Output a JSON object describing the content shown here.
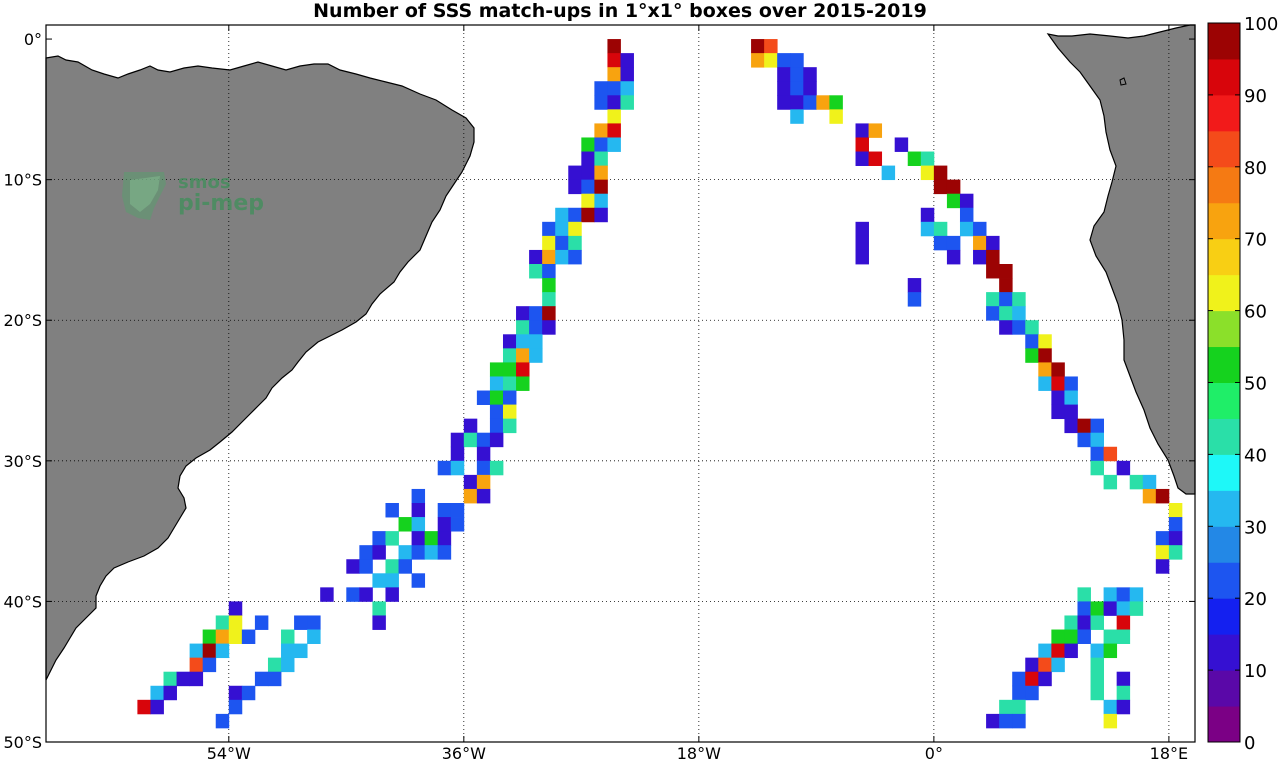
{
  "chart_data": {
    "type": "heatmap",
    "title": "Number of SSS match-ups in 1°x1° boxes over 2015-2019",
    "x_ticks": [
      "54°W",
      "36°W",
      "18°W",
      "0°",
      "18°E"
    ],
    "x_tick_values": [
      -54,
      -36,
      -18,
      0,
      18
    ],
    "y_ticks": [
      "0°",
      "10°S",
      "20°S",
      "30°S",
      "40°S",
      "50°S"
    ],
    "y_tick_values": [
      0,
      -10,
      -20,
      -30,
      -40,
      -50
    ],
    "xlim": [
      -68,
      20
    ],
    "ylim": [
      -50,
      1
    ],
    "grid": true,
    "colorbar": {
      "ticks": [
        "0",
        "10",
        "20",
        "30",
        "40",
        "50",
        "60",
        "70",
        "80",
        "90",
        "100"
      ],
      "range": [
        0,
        100
      ],
      "colors": [
        "#7b0085",
        "#5a08a8",
        "#3510d2",
        "#1420f0",
        "#1d55f0",
        "#2388e6",
        "#25b8f0",
        "#1ef8f8",
        "#2adfa8",
        "#1fee68",
        "#15d21e",
        "#8be02a",
        "#f0f21b",
        "#f8cf14",
        "#f8a30f",
        "#f57a13",
        "#f44b1a",
        "#f21a1a",
        "#d8050b",
        "#9c0303"
      ]
    },
    "cells": [
      [
        -25,
        0,
        100
      ],
      [
        -25,
        -1,
        90
      ],
      [
        -24,
        -1,
        10
      ],
      [
        -25,
        -2,
        70
      ],
      [
        -24,
        -2,
        10
      ],
      [
        -26,
        -3,
        20
      ],
      [
        -25,
        -3,
        20
      ],
      [
        -24,
        -3,
        30
      ],
      [
        -26,
        -4,
        20
      ],
      [
        -25,
        -4,
        10
      ],
      [
        -24,
        -4,
        40
      ],
      [
        -25,
        -5,
        60
      ],
      [
        -26,
        -6,
        70
      ],
      [
        -25,
        -6,
        90
      ],
      [
        -27,
        -7,
        50
      ],
      [
        -26,
        -7,
        20
      ],
      [
        -25,
        -7,
        30
      ],
      [
        -27,
        -8,
        10
      ],
      [
        -26,
        -8,
        40
      ],
      [
        -28,
        -9,
        10
      ],
      [
        -27,
        -9,
        10
      ],
      [
        -26,
        -9,
        70
      ],
      [
        -28,
        -10,
        10
      ],
      [
        -27,
        -10,
        20
      ],
      [
        -26,
        -10,
        100
      ],
      [
        -27,
        -11,
        60
      ],
      [
        -26,
        -11,
        30
      ],
      [
        -29,
        -12,
        30
      ],
      [
        -28,
        -12,
        20
      ],
      [
        -27,
        -12,
        100
      ],
      [
        -26,
        -12,
        10
      ],
      [
        -30,
        -13,
        20
      ],
      [
        -29,
        -13,
        30
      ],
      [
        -28,
        -13,
        60
      ],
      [
        -30,
        -14,
        60
      ],
      [
        -29,
        -14,
        20
      ],
      [
        -28,
        -14,
        40
      ],
      [
        -31,
        -15,
        10
      ],
      [
        -30,
        -15,
        70
      ],
      [
        -29,
        -15,
        30
      ],
      [
        -28,
        -15,
        20
      ],
      [
        -31,
        -16,
        40
      ],
      [
        -30,
        -16,
        20
      ],
      [
        -30,
        -17,
        50
      ],
      [
        -30,
        -18,
        40
      ],
      [
        -32,
        -19,
        10
      ],
      [
        -31,
        -19,
        20
      ],
      [
        -30,
        -19,
        100
      ],
      [
        -32,
        -20,
        40
      ],
      [
        -31,
        -20,
        20
      ],
      [
        -30,
        -20,
        10
      ],
      [
        -33,
        -21,
        10
      ],
      [
        -32,
        -21,
        30
      ],
      [
        -31,
        -21,
        30
      ],
      [
        -33,
        -22,
        40
      ],
      [
        -32,
        -22,
        70
      ],
      [
        -31,
        -22,
        30
      ],
      [
        -34,
        -23,
        50
      ],
      [
        -33,
        -23,
        50
      ],
      [
        -32,
        -23,
        90
      ],
      [
        -34,
        -24,
        30
      ],
      [
        -33,
        -24,
        40
      ],
      [
        -32,
        -24,
        50
      ],
      [
        -35,
        -25,
        20
      ],
      [
        -34,
        -25,
        50
      ],
      [
        -33,
        -25,
        20
      ],
      [
        -34,
        -26,
        20
      ],
      [
        -33,
        -26,
        60
      ],
      [
        -36,
        -27,
        10
      ],
      [
        -34,
        -27,
        20
      ],
      [
        -33,
        -27,
        40
      ],
      [
        -37,
        -28,
        10
      ],
      [
        -36,
        -28,
        40
      ],
      [
        -35,
        -28,
        20
      ],
      [
        -34,
        -28,
        10
      ],
      [
        -37,
        -29,
        10
      ],
      [
        -35,
        -29,
        10
      ],
      [
        -38,
        -30,
        20
      ],
      [
        -37,
        -30,
        30
      ],
      [
        -35,
        -30,
        20
      ],
      [
        -34,
        -30,
        40
      ],
      [
        -36,
        -31,
        10
      ],
      [
        -35,
        -31,
        70
      ],
      [
        -40,
        -32,
        20
      ],
      [
        -36,
        -32,
        70
      ],
      [
        -35,
        -32,
        10
      ],
      [
        -42,
        -33,
        20
      ],
      [
        -40,
        -33,
        10
      ],
      [
        -38,
        -33,
        20
      ],
      [
        -37,
        -33,
        20
      ],
      [
        -41,
        -34,
        50
      ],
      [
        -40,
        -34,
        30
      ],
      [
        -38,
        -34,
        10
      ],
      [
        -37,
        -34,
        20
      ],
      [
        -43,
        -35,
        20
      ],
      [
        -42,
        -35,
        40
      ],
      [
        -40,
        -35,
        10
      ],
      [
        -39,
        -35,
        50
      ],
      [
        -38,
        -35,
        10
      ],
      [
        -44,
        -36,
        20
      ],
      [
        -43,
        -36,
        10
      ],
      [
        -41,
        -36,
        30
      ],
      [
        -40,
        -36,
        20
      ],
      [
        -39,
        -36,
        30
      ],
      [
        -38,
        -36,
        20
      ],
      [
        -45,
        -37,
        10
      ],
      [
        -44,
        -37,
        20
      ],
      [
        -42,
        -37,
        40
      ],
      [
        -41,
        -37,
        20
      ],
      [
        -43,
        -38,
        30
      ],
      [
        -42,
        -38,
        30
      ],
      [
        -40,
        -38,
        20
      ],
      [
        -47,
        -39,
        10
      ],
      [
        -45,
        -39,
        20
      ],
      [
        -44,
        -39,
        10
      ],
      [
        -42,
        -39,
        10
      ],
      [
        -54,
        -40,
        10
      ],
      [
        -43,
        -40,
        40
      ],
      [
        -55,
        -41,
        40
      ],
      [
        -54,
        -41,
        60
      ],
      [
        -52,
        -41,
        20
      ],
      [
        -49,
        -41,
        20
      ],
      [
        -48,
        -41,
        20
      ],
      [
        -43,
        -41,
        10
      ],
      [
        -56,
        -42,
        50
      ],
      [
        -55,
        -42,
        70
      ],
      [
        -54,
        -42,
        60
      ],
      [
        -53,
        -42,
        20
      ],
      [
        -50,
        -42,
        40
      ],
      [
        -48,
        -42,
        30
      ],
      [
        -57,
        -43,
        30
      ],
      [
        -56,
        -43,
        100
      ],
      [
        -55,
        -43,
        30
      ],
      [
        -50,
        -43,
        30
      ],
      [
        -49,
        -43,
        30
      ],
      [
        -57,
        -44,
        80
      ],
      [
        -56,
        -44,
        20
      ],
      [
        -51,
        -44,
        40
      ],
      [
        -50,
        -44,
        30
      ],
      [
        -59,
        -45,
        40
      ],
      [
        -58,
        -45,
        10
      ],
      [
        -57,
        -45,
        10
      ],
      [
        -52,
        -45,
        20
      ],
      [
        -51,
        -45,
        20
      ],
      [
        -60,
        -46,
        30
      ],
      [
        -59,
        -46,
        10
      ],
      [
        -54,
        -46,
        10
      ],
      [
        -53,
        -46,
        20
      ],
      [
        -61,
        -47,
        90
      ],
      [
        -60,
        -47,
        10
      ],
      [
        -54,
        -47,
        20
      ],
      [
        -55,
        -48,
        20
      ],
      [
        -14,
        0,
        100
      ],
      [
        -13,
        0,
        80
      ],
      [
        -14,
        -1,
        70
      ],
      [
        -13,
        -1,
        60
      ],
      [
        -12,
        -1,
        20
      ],
      [
        -11,
        -1,
        20
      ],
      [
        -12,
        -2,
        10
      ],
      [
        -11,
        -2,
        20
      ],
      [
        -10,
        -2,
        10
      ],
      [
        -12,
        -3,
        10
      ],
      [
        -11,
        -3,
        20
      ],
      [
        -10,
        -3,
        10
      ],
      [
        -12,
        -4,
        10
      ],
      [
        -11,
        -4,
        10
      ],
      [
        -10,
        -4,
        20
      ],
      [
        -9,
        -4,
        70
      ],
      [
        -8,
        -4,
        50
      ],
      [
        -11,
        -5,
        30
      ],
      [
        -8,
        -5,
        60
      ],
      [
        -6,
        -6,
        10
      ],
      [
        -5,
        -6,
        70
      ],
      [
        -6,
        -7,
        90
      ],
      [
        -6,
        -8,
        10
      ],
      [
        -5,
        -8,
        90
      ],
      [
        -3,
        -7,
        10
      ],
      [
        -2,
        -8,
        50
      ],
      [
        -1,
        -8,
        40
      ],
      [
        -4,
        -9,
        30
      ],
      [
        -1,
        -9,
        60
      ],
      [
        0,
        -9,
        100
      ],
      [
        0,
        -10,
        100
      ],
      [
        1,
        -10,
        100
      ],
      [
        1,
        -11,
        50
      ],
      [
        2,
        -11,
        10
      ],
      [
        -1,
        -12,
        10
      ],
      [
        2,
        -12,
        20
      ],
      [
        -1,
        -13,
        30
      ],
      [
        0,
        -13,
        40
      ],
      [
        2,
        -13,
        30
      ],
      [
        3,
        -13,
        20
      ],
      [
        -6,
        -13,
        10
      ],
      [
        0,
        -14,
        20
      ],
      [
        1,
        -14,
        20
      ],
      [
        3,
        -14,
        70
      ],
      [
        4,
        -14,
        10
      ],
      [
        -6,
        -14,
        10
      ],
      [
        -6,
        -15,
        10
      ],
      [
        1,
        -15,
        10
      ],
      [
        3,
        -15,
        10
      ],
      [
        4,
        -15,
        100
      ],
      [
        4,
        -16,
        100
      ],
      [
        5,
        -16,
        100
      ],
      [
        -2,
        -17,
        10
      ],
      [
        5,
        -17,
        100
      ],
      [
        -2,
        -18,
        20
      ],
      [
        4,
        -18,
        40
      ],
      [
        5,
        -18,
        20
      ],
      [
        6,
        -18,
        40
      ],
      [
        4,
        -19,
        20
      ],
      [
        5,
        -19,
        40
      ],
      [
        6,
        -19,
        30
      ],
      [
        5,
        -20,
        10
      ],
      [
        6,
        -20,
        20
      ],
      [
        7,
        -20,
        40
      ],
      [
        7,
        -21,
        20
      ],
      [
        8,
        -21,
        60
      ],
      [
        7,
        -22,
        50
      ],
      [
        8,
        -22,
        100
      ],
      [
        8,
        -23,
        70
      ],
      [
        9,
        -23,
        100
      ],
      [
        8,
        -24,
        30
      ],
      [
        9,
        -24,
        90
      ],
      [
        10,
        -24,
        20
      ],
      [
        9,
        -25,
        10
      ],
      [
        10,
        -25,
        30
      ],
      [
        9,
        -26,
        10
      ],
      [
        10,
        -26,
        10
      ],
      [
        10,
        -27,
        10
      ],
      [
        11,
        -27,
        100
      ],
      [
        12,
        -27,
        20
      ],
      [
        11,
        -28,
        20
      ],
      [
        12,
        -28,
        30
      ],
      [
        12,
        -29,
        20
      ],
      [
        13,
        -29,
        80
      ],
      [
        12,
        -30,
        40
      ],
      [
        14,
        -30,
        10
      ],
      [
        13,
        -31,
        40
      ],
      [
        15,
        -31,
        40
      ],
      [
        16,
        -31,
        30
      ],
      [
        16,
        -32,
        70
      ],
      [
        17,
        -32,
        100
      ],
      [
        18,
        -33,
        60
      ],
      [
        18,
        -34,
        20
      ],
      [
        17,
        -35,
        20
      ],
      [
        18,
        -35,
        10
      ],
      [
        17,
        -36,
        60
      ],
      [
        18,
        -36,
        40
      ],
      [
        17,
        -37,
        10
      ],
      [
        11,
        -39,
        40
      ],
      [
        13,
        -39,
        30
      ],
      [
        14,
        -39,
        20
      ],
      [
        15,
        -39,
        30
      ],
      [
        11,
        -40,
        20
      ],
      [
        12,
        -40,
        50
      ],
      [
        13,
        -40,
        10
      ],
      [
        14,
        -40,
        30
      ],
      [
        15,
        -40,
        40
      ],
      [
        10,
        -41,
        40
      ],
      [
        11,
        -41,
        10
      ],
      [
        12,
        -41,
        40
      ],
      [
        14,
        -41,
        90
      ],
      [
        9,
        -42,
        50
      ],
      [
        10,
        -42,
        50
      ],
      [
        11,
        -42,
        20
      ],
      [
        13,
        -42,
        40
      ],
      [
        14,
        -42,
        40
      ],
      [
        8,
        -43,
        30
      ],
      [
        9,
        -43,
        90
      ],
      [
        10,
        -43,
        10
      ],
      [
        12,
        -43,
        30
      ],
      [
        13,
        -43,
        50
      ],
      [
        7,
        -44,
        10
      ],
      [
        8,
        -44,
        80
      ],
      [
        9,
        -44,
        30
      ],
      [
        12,
        -44,
        40
      ],
      [
        6,
        -45,
        20
      ],
      [
        7,
        -45,
        90
      ],
      [
        8,
        -45,
        10
      ],
      [
        12,
        -45,
        40
      ],
      [
        14,
        -45,
        10
      ],
      [
        6,
        -46,
        20
      ],
      [
        7,
        -46,
        20
      ],
      [
        12,
        -46,
        40
      ],
      [
        14,
        -46,
        40
      ],
      [
        5,
        -47,
        40
      ],
      [
        6,
        -47,
        40
      ],
      [
        13,
        -47,
        30
      ],
      [
        14,
        -47,
        10
      ],
      [
        4,
        -48,
        10
      ],
      [
        5,
        -48,
        20
      ],
      [
        6,
        -48,
        20
      ],
      [
        13,
        -48,
        60
      ]
    ]
  },
  "logo": {
    "line1": "smos",
    "line2": "pi-mep"
  },
  "colors": {
    "land": "#808080",
    "coast": "#000000",
    "ocean": "#ffffff"
  }
}
